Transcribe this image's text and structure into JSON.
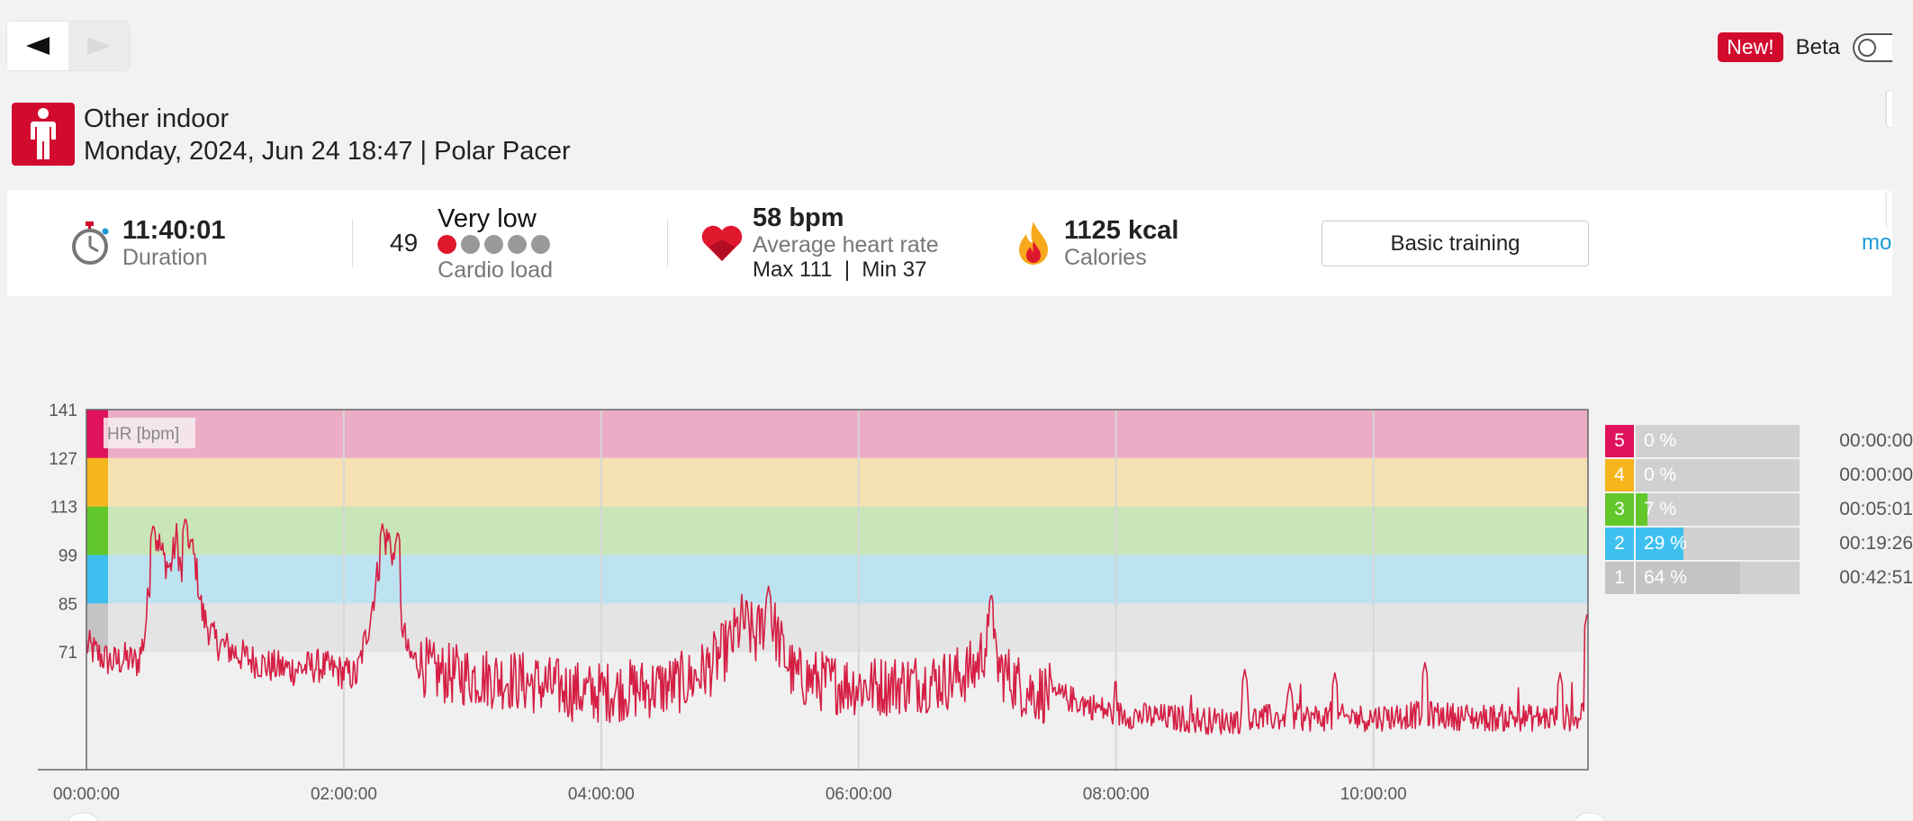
{
  "nav": {
    "prev_icon": "arrow-left-icon",
    "next_icon": "arrow-right-icon"
  },
  "beta": {
    "badge": "New!",
    "label": "Beta",
    "enabled": false
  },
  "header": {
    "sport_icon": "person-icon",
    "sport": "Other indoor",
    "datetime": "Monday, 2024, Jun 24 18:47",
    "separator": "|",
    "device": "Polar Pacer"
  },
  "summary": {
    "duration": {
      "icon": "stopwatch-icon",
      "value": "11:40:01",
      "label": "Duration"
    },
    "cardio_load": {
      "value": "49",
      "level": "Very low",
      "label": "Cardio load",
      "dots_total": 5,
      "dots_active": 1
    },
    "heart_rate": {
      "icon": "heart-icon",
      "value": "58 bpm",
      "label": "Average heart rate",
      "max_label": "Max 111",
      "separator": "|",
      "min_label": "Min 37"
    },
    "calories": {
      "icon": "flame-icon",
      "value": "1125 kcal",
      "label": "Calories"
    },
    "training_button": "Basic training",
    "more_link": "mo"
  },
  "chart_data": {
    "type": "line",
    "series": [
      {
        "name": "HR [bpm]"
      }
    ],
    "ylim": [
      37,
      141
    ],
    "yticks": [
      "141",
      "127",
      "113",
      "99",
      "85",
      "71"
    ],
    "xticks": [
      "00:00:00",
      "02:00:00",
      "04:00:00",
      "06:00:00",
      "08:00:00",
      "10:00:00"
    ],
    "x_max_hours": 11.667,
    "zones": [
      {
        "zone": 5,
        "from": 127,
        "to": 141,
        "color": "#e0125c",
        "band": "#ebadc6"
      },
      {
        "zone": 4,
        "from": 113,
        "to": 127,
        "color": "#f7b51d",
        "band": "#f5e1b2"
      },
      {
        "zone": 3,
        "from": 99,
        "to": 113,
        "color": "#62c72b",
        "band": "#c9e6b8"
      },
      {
        "zone": 2,
        "from": 85,
        "to": 99,
        "color": "#3dc0ef",
        "band": "#bde3f1"
      },
      {
        "zone": 1,
        "from": 71,
        "to": 85,
        "color": "#c4c4c4",
        "band": "#e4e4e4"
      }
    ],
    "keypoints": [
      [
        0,
        73
      ],
      [
        0.1,
        70
      ],
      [
        0.2,
        68
      ],
      [
        0.3,
        69
      ],
      [
        0.4,
        68
      ],
      [
        0.45,
        75
      ],
      [
        0.5,
        95
      ],
      [
        0.55,
        104
      ],
      [
        0.6,
        98
      ],
      [
        0.65,
        95
      ],
      [
        0.7,
        104
      ],
      [
        0.75,
        90
      ],
      [
        0.8,
        104
      ],
      [
        0.85,
        96
      ],
      [
        0.9,
        82
      ],
      [
        1.0,
        74
      ],
      [
        1.2,
        70
      ],
      [
        1.4,
        67
      ],
      [
        1.6,
        66
      ],
      [
        1.8,
        67
      ],
      [
        2.0,
        65
      ],
      [
        2.1,
        64
      ],
      [
        2.2,
        80
      ],
      [
        2.3,
        102
      ],
      [
        2.35,
        104
      ],
      [
        2.4,
        96
      ],
      [
        2.45,
        80
      ],
      [
        2.5,
        70
      ],
      [
        2.7,
        65
      ],
      [
        3.0,
        64
      ],
      [
        3.3,
        63
      ],
      [
        3.6,
        61
      ],
      [
        3.9,
        59
      ],
      [
        4.2,
        60
      ],
      [
        4.5,
        61
      ],
      [
        4.7,
        63
      ],
      [
        4.85,
        67
      ],
      [
        5.0,
        73
      ],
      [
        5.1,
        80
      ],
      [
        5.2,
        75
      ],
      [
        5.3,
        83
      ],
      [
        5.4,
        72
      ],
      [
        5.5,
        64
      ],
      [
        5.8,
        62
      ],
      [
        6.1,
        61
      ],
      [
        6.4,
        62
      ],
      [
        6.7,
        63
      ],
      [
        6.9,
        66
      ],
      [
        7.0,
        74
      ],
      [
        7.1,
        66
      ],
      [
        7.3,
        60
      ],
      [
        7.6,
        58
      ],
      [
        8.0,
        53
      ],
      [
        8.4,
        52
      ],
      [
        8.8,
        51
      ],
      [
        9.2,
        52
      ],
      [
        9.6,
        52
      ],
      [
        10.0,
        52
      ],
      [
        10.4,
        53
      ],
      [
        10.8,
        52
      ],
      [
        11.2,
        52
      ],
      [
        11.5,
        52
      ],
      [
        11.6,
        52
      ],
      [
        11.667,
        60
      ]
    ],
    "spikes": [
      [
        0.52,
        108
      ],
      [
        0.77,
        110
      ],
      [
        2.3,
        108
      ],
      [
        2.42,
        106
      ],
      [
        5.3,
        90
      ],
      [
        7.03,
        88
      ],
      [
        9.0,
        66
      ],
      [
        9.35,
        62
      ],
      [
        9.7,
        65
      ],
      [
        10.4,
        68
      ],
      [
        11.45,
        65
      ],
      [
        11.66,
        82
      ]
    ]
  },
  "zone_summary": [
    {
      "zone": "5",
      "pct": "0 %",
      "fraction": 0,
      "time": "00:00:00",
      "color": "#e0125c"
    },
    {
      "zone": "4",
      "pct": "0 %",
      "fraction": 0,
      "time": "00:00:00",
      "color": "#f7b51d"
    },
    {
      "zone": "3",
      "pct": "7 %",
      "fraction": 0.07,
      "time": "00:05:01",
      "color": "#62c72b"
    },
    {
      "zone": "2",
      "pct": "29 %",
      "fraction": 0.29,
      "time": "00:19:26",
      "color": "#3dc0ef"
    },
    {
      "zone": "1",
      "pct": "64 %",
      "fraction": 0.64,
      "time": "00:42:51",
      "color": "#c4c4c4"
    }
  ],
  "colors": {
    "accent": "#d10a2e",
    "hr_line": "#d51f44",
    "link": "#1a9bd7"
  }
}
